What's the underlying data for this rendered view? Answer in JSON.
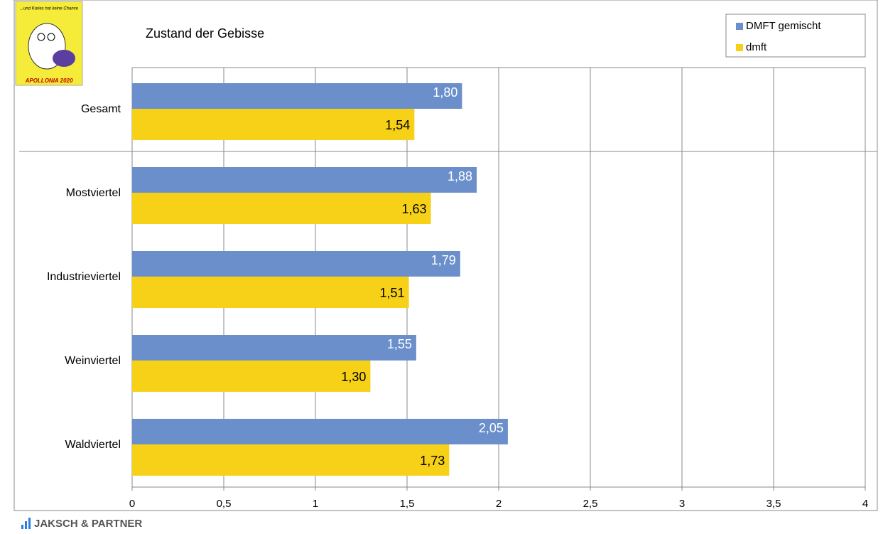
{
  "logo": {
    "top_text": "...und Karies hat keine Chance",
    "bottom_text": "APOLLONIA 2020"
  },
  "footer": "JAKSCH & PARTNER",
  "chart_data": {
    "type": "bar",
    "orientation": "horizontal",
    "title": "Zustand der Gebisse",
    "categories": [
      "Gesamt",
      "Mostviertel",
      "Industrieviertel",
      "Weinviertel",
      "Waldviertel"
    ],
    "series": [
      {
        "name": "DMFT gemischt",
        "color": "#6a8fcb",
        "values": [
          1.8,
          1.88,
          1.79,
          1.55,
          2.05
        ],
        "value_labels": [
          "1,80",
          "1,88",
          "1,79",
          "1,55",
          "2,05"
        ]
      },
      {
        "name": "dmft",
        "color": "#f7d117",
        "values": [
          1.54,
          1.63,
          1.51,
          1.3,
          1.73
        ],
        "value_labels": [
          "1,54",
          "1,63",
          "1,51",
          "1,30",
          "1,73"
        ]
      }
    ],
    "xlim": [
      0,
      4
    ],
    "xticks": [
      0,
      {
        "value": 0.5,
        "label": "0,5"
      },
      1,
      {
        "value": 1.5,
        "label": "1,5"
      },
      2,
      {
        "value": 2.5,
        "label": "2,5"
      },
      3,
      {
        "value": 3.5,
        "label": "3,5"
      },
      4
    ],
    "grid": true,
    "legend": "top-right"
  }
}
